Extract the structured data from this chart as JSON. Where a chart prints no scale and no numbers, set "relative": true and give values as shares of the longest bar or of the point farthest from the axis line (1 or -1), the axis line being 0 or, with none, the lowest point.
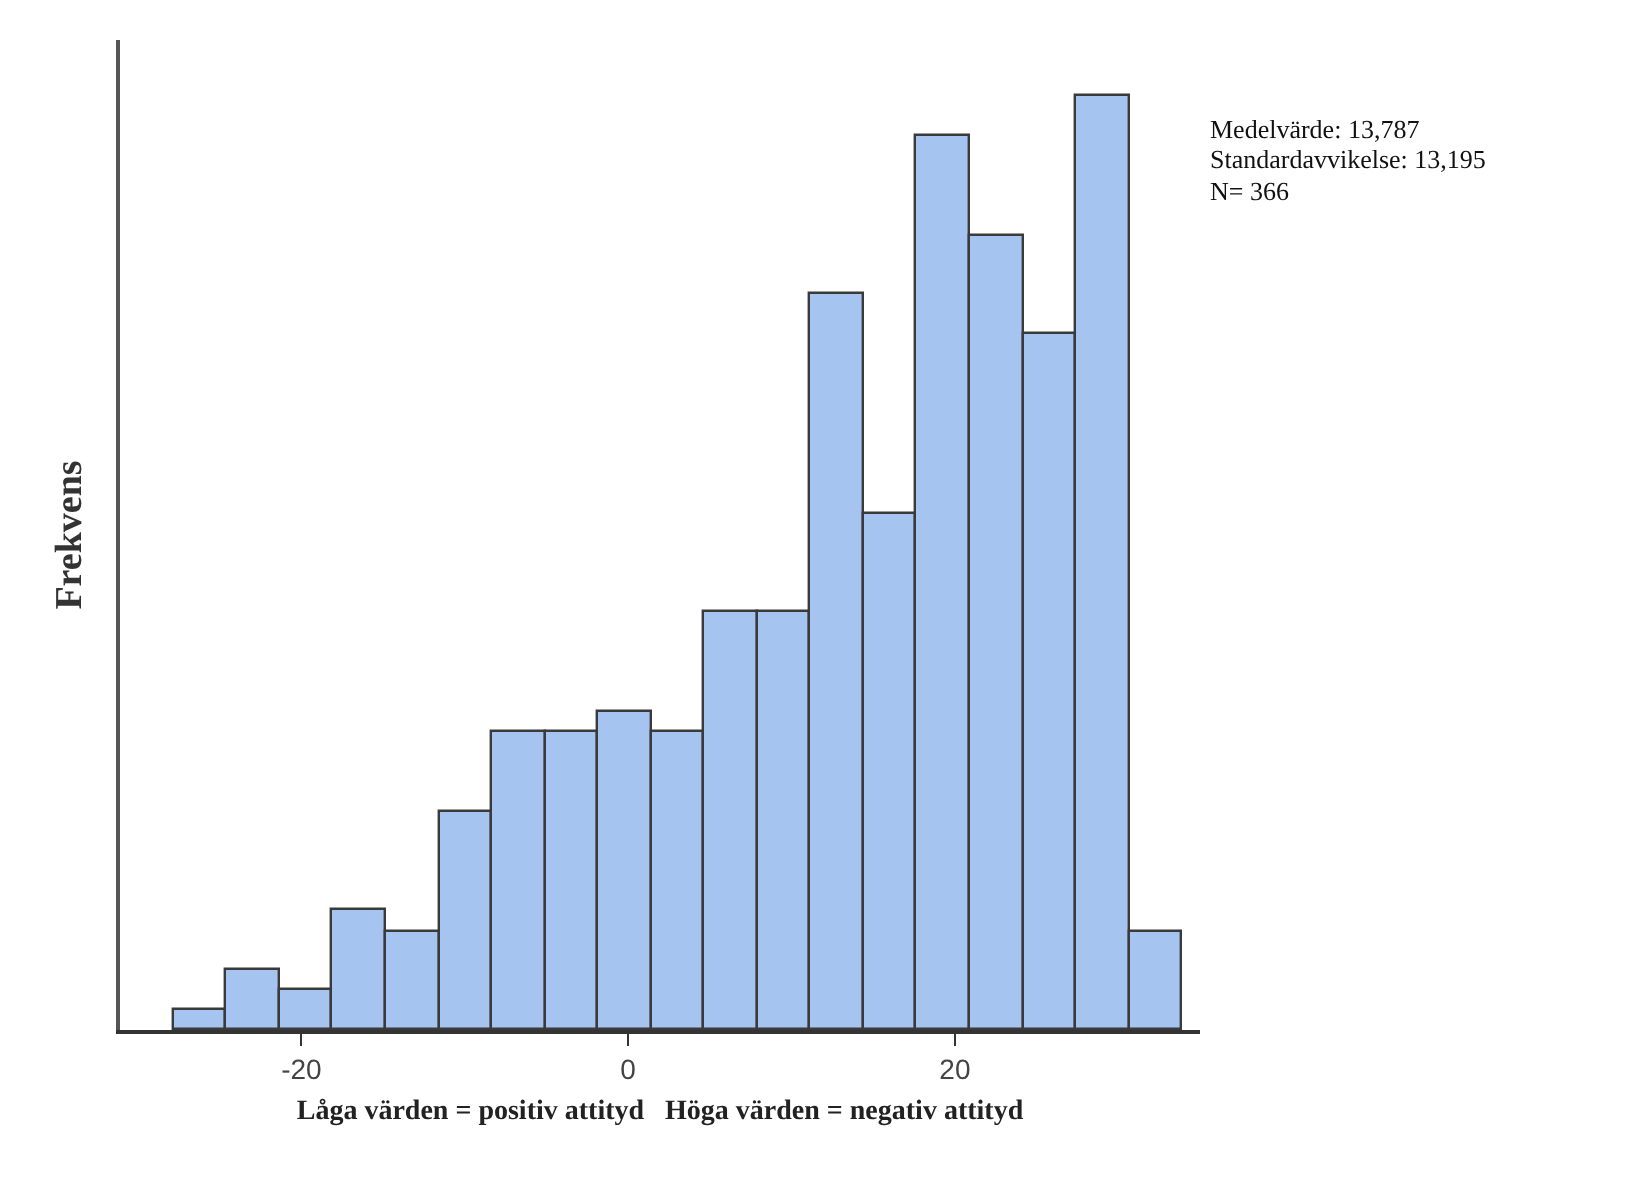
{
  "chart_data": {
    "type": "bar",
    "xlabel": "Låga värden = positiv attityd   Höga värden = negativ attityd",
    "ylabel": "Frekvens",
    "x": [
      -26.2,
      -22.95,
      -19.7,
      -16.45,
      -13.2,
      -9.95,
      -6.7,
      -3.45,
      -0.2,
      3.05,
      6.3,
      9.55,
      12.8,
      16.05,
      19.3,
      22.55,
      25.8,
      29.05,
      32.3
    ],
    "values": [
      0.021,
      0.064,
      0.043,
      0.128,
      0.106,
      0.234,
      0.319,
      0.319,
      0.34,
      0.319,
      0.447,
      0.447,
      0.787,
      0.553,
      0.957,
      0.851,
      0.745,
      1,
      0.106
    ],
    "relative": true,
    "color": "#a6c4f0",
    "xlim": [
      -31.1,
      35.0
    ],
    "xticks": [
      -20,
      0,
      20
    ],
    "annotations": [
      "Medelvärde: 13,787",
      "Standardavvikelse: 13,195",
      "N= 366"
    ]
  }
}
